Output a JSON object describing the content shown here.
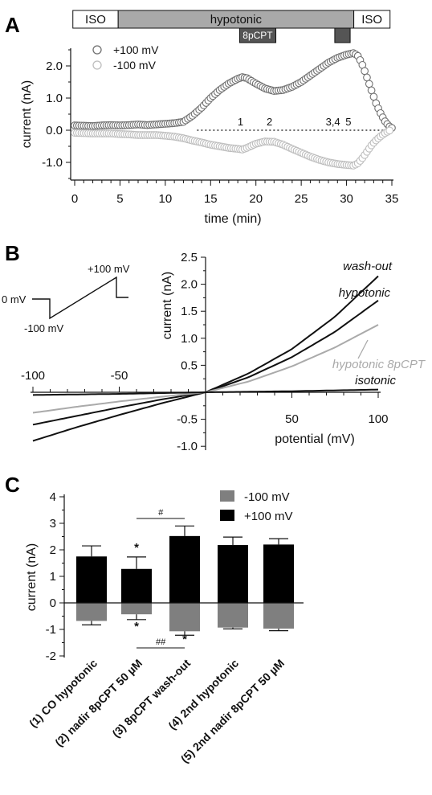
{
  "panels": {
    "a": "A",
    "b": "B",
    "c": "C"
  },
  "chart_data": [
    {
      "panel": "A",
      "type": "scatter",
      "xlabel": "time (min)",
      "ylabel": "current (nA)",
      "xlim": [
        -0.5,
        35.5
      ],
      "ylim": [
        -1.5,
        2.6
      ],
      "x_ticks": [
        "0",
        "5",
        "10",
        "15",
        "20",
        "25",
        "30",
        "35"
      ],
      "y_ticks": [
        "2.0",
        "1.0",
        "0.0",
        "-1.0"
      ],
      "protocol_bar": [
        {
          "label": "ISO",
          "start": -0.2,
          "end": 4.8,
          "fill": "#ffffff"
        },
        {
          "label": "hypotonic",
          "start": 4.8,
          "end": 30.8,
          "fill": "#a9a9a9"
        },
        {
          "label": "ISO",
          "start": 30.8,
          "end": 34.8,
          "fill": "#ffffff"
        }
      ],
      "drug_bars": [
        {
          "label": "8pCPT",
          "start": 18.2,
          "end": 22.2,
          "fill": "#555555"
        },
        {
          "label": "",
          "start": 28.7,
          "end": 30.4,
          "fill": "#555555"
        }
      ],
      "markers": [
        {
          "label": "1",
          "x": 18.3
        },
        {
          "label": "2",
          "x": 21.5
        },
        {
          "label": "3,4",
          "x": 28.5
        },
        {
          "label": "5",
          "x": 30.2
        }
      ],
      "series": [
        {
          "name": "+100 mV",
          "color": "#707070",
          "points": [
            [
              0,
              0.15
            ],
            [
              1,
              0.14
            ],
            [
              2,
              0.13
            ],
            [
              3,
              0.15
            ],
            [
              4,
              0.16
            ],
            [
              5,
              0.15
            ],
            [
              6,
              0.16
            ],
            [
              7,
              0.18
            ],
            [
              8,
              0.16
            ],
            [
              9,
              0.18
            ],
            [
              10,
              0.2
            ],
            [
              11,
              0.22
            ],
            [
              12,
              0.26
            ],
            [
              13,
              0.45
            ],
            [
              14,
              0.7
            ],
            [
              15,
              1.0
            ],
            [
              16,
              1.25
            ],
            [
              17,
              1.45
            ],
            [
              18,
              1.6
            ],
            [
              18.5,
              1.65
            ],
            [
              19,
              1.62
            ],
            [
              20,
              1.45
            ],
            [
              21,
              1.3
            ],
            [
              22,
              1.22
            ],
            [
              23,
              1.25
            ],
            [
              24,
              1.35
            ],
            [
              25,
              1.5
            ],
            [
              26,
              1.7
            ],
            [
              27,
              1.9
            ],
            [
              28,
              2.1
            ],
            [
              29,
              2.25
            ],
            [
              30,
              2.35
            ],
            [
              30.8,
              2.4
            ],
            [
              31.3,
              2.3
            ],
            [
              31.8,
              2.0
            ],
            [
              32.3,
              1.6
            ],
            [
              32.8,
              1.2
            ],
            [
              33.3,
              0.8
            ],
            [
              33.8,
              0.5
            ],
            [
              34.3,
              0.25
            ],
            [
              34.8,
              0.1
            ],
            [
              35,
              0.07
            ]
          ]
        },
        {
          "name": "-100 mV",
          "color": "#bdbdbd",
          "points": [
            [
              0,
              -0.08
            ],
            [
              1,
              -0.09
            ],
            [
              2,
              -0.1
            ],
            [
              3,
              -0.1
            ],
            [
              4,
              -0.1
            ],
            [
              5,
              -0.12
            ],
            [
              6,
              -0.13
            ],
            [
              7,
              -0.15
            ],
            [
              8,
              -0.15
            ],
            [
              9,
              -0.15
            ],
            [
              10,
              -0.17
            ],
            [
              11,
              -0.2
            ],
            [
              12,
              -0.25
            ],
            [
              13,
              -0.32
            ],
            [
              14,
              -0.38
            ],
            [
              15,
              -0.45
            ],
            [
              16,
              -0.5
            ],
            [
              17,
              -0.55
            ],
            [
              18,
              -0.58
            ],
            [
              18.5,
              -0.6
            ],
            [
              19,
              -0.55
            ],
            [
              20,
              -0.42
            ],
            [
              21,
              -0.35
            ],
            [
              22,
              -0.36
            ],
            [
              23,
              -0.45
            ],
            [
              24,
              -0.58
            ],
            [
              25,
              -0.7
            ],
            [
              26,
              -0.82
            ],
            [
              27,
              -0.92
            ],
            [
              28,
              -1.0
            ],
            [
              29,
              -1.05
            ],
            [
              30,
              -1.08
            ],
            [
              30.8,
              -1.1
            ],
            [
              31.3,
              -1.02
            ],
            [
              31.8,
              -0.85
            ],
            [
              32.3,
              -0.65
            ],
            [
              32.8,
              -0.45
            ],
            [
              33.3,
              -0.3
            ],
            [
              33.8,
              -0.18
            ],
            [
              34.3,
              -0.08
            ],
            [
              34.8,
              0.0
            ]
          ]
        }
      ]
    },
    {
      "panel": "B",
      "type": "line",
      "xlabel": "potential (mV)",
      "ylabel": "current (nA)",
      "xlim": [
        -100,
        100
      ],
      "ylim": [
        -1.0,
        2.5
      ],
      "x_ticks_top": [
        "-100",
        "-50"
      ],
      "x_ticks_bottom": [
        "50",
        "100"
      ],
      "y_ticks": [
        "2.5",
        "2.0",
        "1.5",
        "1.0",
        "0.5",
        "-0.5",
        "-1.0"
      ],
      "ramp_labels": {
        "hold": "0 mV",
        "low": "-100 mV",
        "high": "+100 mV"
      },
      "series": [
        {
          "name": "wash-out",
          "color": "#111111",
          "points": [
            [
              -100,
              -0.9
            ],
            [
              -75,
              -0.65
            ],
            [
              -50,
              -0.42
            ],
            [
              -25,
              -0.2
            ],
            [
              0,
              0
            ],
            [
              25,
              0.35
            ],
            [
              50,
              0.8
            ],
            [
              75,
              1.4
            ],
            [
              100,
              2.15
            ]
          ]
        },
        {
          "name": "hypotonic",
          "color": "#111111",
          "points": [
            [
              -100,
              -0.6
            ],
            [
              -75,
              -0.44
            ],
            [
              -50,
              -0.28
            ],
            [
              -25,
              -0.13
            ],
            [
              0,
              0
            ],
            [
              25,
              0.28
            ],
            [
              50,
              0.65
            ],
            [
              75,
              1.12
            ],
            [
              100,
              1.7
            ]
          ]
        },
        {
          "name": "hypotonic 8pCPT",
          "color": "#aaaaaa",
          "points": [
            [
              -100,
              -0.38
            ],
            [
              -75,
              -0.27
            ],
            [
              -50,
              -0.17
            ],
            [
              -25,
              -0.08
            ],
            [
              0,
              0
            ],
            [
              25,
              0.2
            ],
            [
              50,
              0.48
            ],
            [
              75,
              0.83
            ],
            [
              100,
              1.25
            ]
          ]
        },
        {
          "name": "isotonic",
          "color": "#111111",
          "points": [
            [
              -100,
              -0.05
            ],
            [
              -50,
              -0.03
            ],
            [
              0,
              0
            ],
            [
              50,
              0.02
            ],
            [
              100,
              0.05
            ]
          ]
        }
      ]
    },
    {
      "panel": "C",
      "type": "bar",
      "ylabel": "current (nA)",
      "ylim": [
        -2,
        4
      ],
      "y_ticks": [
        "4",
        "3",
        "2",
        "1",
        "0",
        "-1",
        "-2"
      ],
      "categories": [
        "(1) CO hypotonic",
        "(2) nadir 8pCPT 50 µM",
        "(3) 8pCPT wash-out",
        "(4) 2nd hypotonic",
        "(5) 2nd nadir 8pCPT 50 µM"
      ],
      "legend": {
        "position": "top-right"
      },
      "series": [
        {
          "name": "-100 mV",
          "color": "#7f7f7f",
          "values": [
            -0.68,
            -0.43,
            -1.07,
            -0.93,
            -0.97
          ],
          "errors": [
            0.15,
            0.2,
            0.15,
            0.05,
            0.08
          ]
        },
        {
          "name": "+100 mV",
          "color": "#000000",
          "values": [
            1.75,
            1.28,
            2.52,
            2.18,
            2.2
          ],
          "errors": [
            0.4,
            0.45,
            0.38,
            0.3,
            0.22
          ]
        }
      ],
      "significance": [
        {
          "label": "*",
          "category": 1,
          "where": "above"
        },
        {
          "label": "*",
          "category": 1,
          "where": "below"
        },
        {
          "label": "*",
          "category": 2,
          "where": "below"
        },
        {
          "label": "#",
          "from": 1,
          "to": 2,
          "where": "top"
        },
        {
          "label": "##",
          "from": 1,
          "to": 2,
          "where": "bottom"
        }
      ]
    }
  ]
}
